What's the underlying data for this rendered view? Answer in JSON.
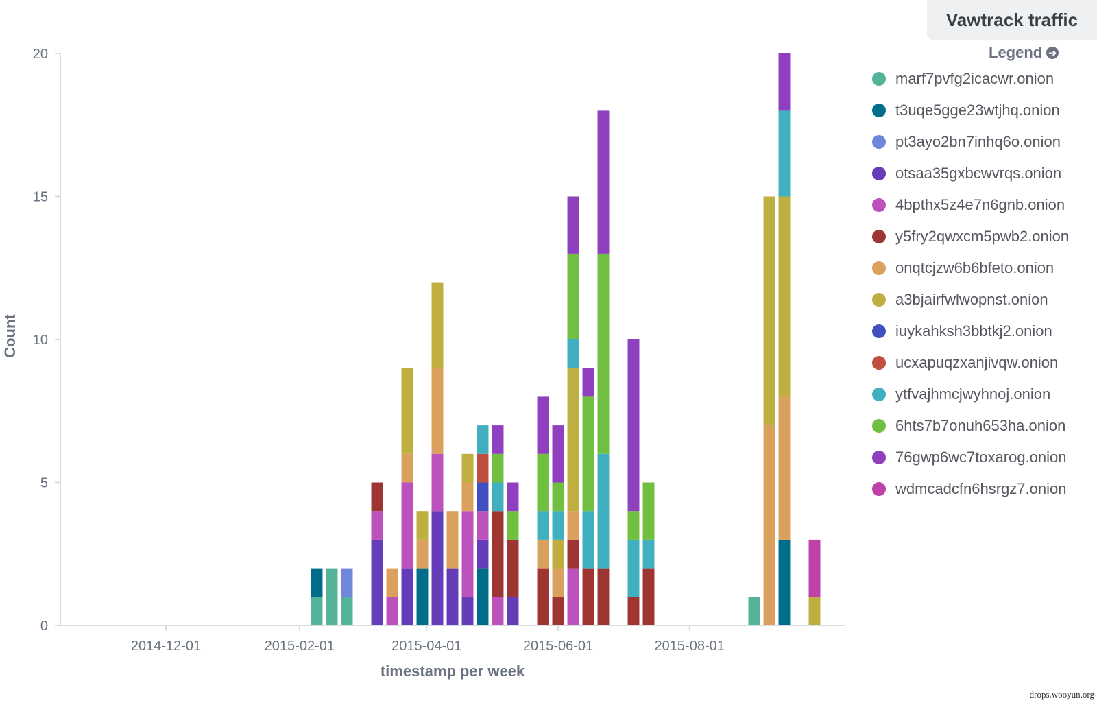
{
  "title": "Vawtrack traffic",
  "legend_title": "Legend",
  "watermark": "drops.wooyun.org",
  "chart_data": {
    "type": "bar",
    "stacked": true,
    "xlabel": "timestamp per week",
    "ylabel": "Count",
    "ylim": [
      0,
      20
    ],
    "yticks": [
      0,
      5,
      10,
      15,
      20
    ],
    "xticks": [
      "2014-12-01",
      "2015-02-01",
      "2015-04-01",
      "2015-06-01",
      "2015-08-01"
    ],
    "xrange": [
      "2014-10-13",
      "2015-10-12"
    ],
    "grid": false,
    "legend_position": "right",
    "series": [
      {
        "name": "marf7pvfg2icacwr.onion",
        "color": "#54b399"
      },
      {
        "name": "t3uqe5gge23wtjhq.onion",
        "color": "#006e8a"
      },
      {
        "name": "pt3ayo2bn7inhq6o.onion",
        "color": "#6f87d8"
      },
      {
        "name": "otsaa35gxbcwvrqs.onion",
        "color": "#663db8"
      },
      {
        "name": "4bpthx5z4e7n6gnb.onion",
        "color": "#bc52bc"
      },
      {
        "name": "y5fry2qwxcm5pwb2.onion",
        "color": "#9e3533"
      },
      {
        "name": "onqtcjzw6b6bfeto.onion",
        "color": "#daa05d"
      },
      {
        "name": "a3bjairfwlwopnst.onion",
        "color": "#bfaf40"
      },
      {
        "name": "iuykahksh3bbtkj2.onion",
        "color": "#4050bf"
      },
      {
        "name": "ucxapuqzxanjivqw.onion",
        "color": "#bf5040"
      },
      {
        "name": "ytfvajhmcjwyhnoj.onion",
        "color": "#40afbf"
      },
      {
        "name": "6hts7b7onuh653ha.onion",
        "color": "#70bf40"
      },
      {
        "name": "76gwp6wc7toxarog.onion",
        "color": "#8e40bf"
      },
      {
        "name": "wdmcadcfn6hsrgz7.onion",
        "color": "#bf40a7"
      }
    ],
    "bars": [
      {
        "week": "2015-02-09",
        "segments": [
          {
            "series": 0,
            "value": 1
          },
          {
            "series": 1,
            "value": 1
          }
        ]
      },
      {
        "week": "2015-02-16",
        "segments": [
          {
            "series": 0,
            "value": 2
          }
        ]
      },
      {
        "week": "2015-02-23",
        "segments": [
          {
            "series": 0,
            "value": 1
          },
          {
            "series": 2,
            "value": 1
          }
        ]
      },
      {
        "week": "2015-03-09",
        "segments": [
          {
            "series": 3,
            "value": 3
          },
          {
            "series": 4,
            "value": 1
          },
          {
            "series": 5,
            "value": 1
          }
        ]
      },
      {
        "week": "2015-03-16",
        "segments": [
          {
            "series": 4,
            "value": 1
          },
          {
            "series": 6,
            "value": 1
          }
        ]
      },
      {
        "week": "2015-03-23",
        "segments": [
          {
            "series": 3,
            "value": 2
          },
          {
            "series": 4,
            "value": 3
          },
          {
            "series": 6,
            "value": 1
          },
          {
            "series": 7,
            "value": 3
          }
        ]
      },
      {
        "week": "2015-03-30",
        "segments": [
          {
            "series": 1,
            "value": 2
          },
          {
            "series": 6,
            "value": 1
          },
          {
            "series": 7,
            "value": 1
          }
        ]
      },
      {
        "week": "2015-04-06",
        "segments": [
          {
            "series": 3,
            "value": 4
          },
          {
            "series": 4,
            "value": 2
          },
          {
            "series": 6,
            "value": 3
          },
          {
            "series": 7,
            "value": 3
          }
        ]
      },
      {
        "week": "2015-04-13",
        "segments": [
          {
            "series": 3,
            "value": 2
          },
          {
            "series": 6,
            "value": 2
          }
        ]
      },
      {
        "week": "2015-04-20",
        "segments": [
          {
            "series": 3,
            "value": 1
          },
          {
            "series": 4,
            "value": 3
          },
          {
            "series": 6,
            "value": 1
          },
          {
            "series": 7,
            "value": 1
          }
        ]
      },
      {
        "week": "2015-04-27",
        "segments": [
          {
            "series": 1,
            "value": 2
          },
          {
            "series": 3,
            "value": 1
          },
          {
            "series": 4,
            "value": 1
          },
          {
            "series": 8,
            "value": 1
          },
          {
            "series": 9,
            "value": 1
          },
          {
            "series": 10,
            "value": 1
          }
        ]
      },
      {
        "week": "2015-05-04",
        "segments": [
          {
            "series": 4,
            "value": 1
          },
          {
            "series": 5,
            "value": 3
          },
          {
            "series": 10,
            "value": 1
          },
          {
            "series": 11,
            "value": 1
          },
          {
            "series": 12,
            "value": 1
          }
        ]
      },
      {
        "week": "2015-05-11",
        "segments": [
          {
            "series": 3,
            "value": 1
          },
          {
            "series": 5,
            "value": 2
          },
          {
            "series": 11,
            "value": 1
          },
          {
            "series": 12,
            "value": 1
          }
        ]
      },
      {
        "week": "2015-05-25",
        "segments": [
          {
            "series": 5,
            "value": 2
          },
          {
            "series": 6,
            "value": 1
          },
          {
            "series": 10,
            "value": 1
          },
          {
            "series": 11,
            "value": 2
          },
          {
            "series": 12,
            "value": 2
          }
        ]
      },
      {
        "week": "2015-06-01",
        "segments": [
          {
            "series": 5,
            "value": 1
          },
          {
            "series": 6,
            "value": 1
          },
          {
            "series": 7,
            "value": 1
          },
          {
            "series": 10,
            "value": 1
          },
          {
            "series": 11,
            "value": 1
          },
          {
            "series": 12,
            "value": 2
          }
        ]
      },
      {
        "week": "2015-06-08",
        "segments": [
          {
            "series": 4,
            "value": 2
          },
          {
            "series": 5,
            "value": 1
          },
          {
            "series": 6,
            "value": 1
          },
          {
            "series": 7,
            "value": 5
          },
          {
            "series": 10,
            "value": 1
          },
          {
            "series": 11,
            "value": 3
          },
          {
            "series": 12,
            "value": 2
          }
        ]
      },
      {
        "week": "2015-06-15",
        "segments": [
          {
            "series": 5,
            "value": 2
          },
          {
            "series": 10,
            "value": 2
          },
          {
            "series": 11,
            "value": 4
          },
          {
            "series": 12,
            "value": 1
          }
        ]
      },
      {
        "week": "2015-06-22",
        "segments": [
          {
            "series": 5,
            "value": 2
          },
          {
            "series": 10,
            "value": 4
          },
          {
            "series": 11,
            "value": 7
          },
          {
            "series": 12,
            "value": 5
          }
        ]
      },
      {
        "week": "2015-07-06",
        "segments": [
          {
            "series": 5,
            "value": 1
          },
          {
            "series": 10,
            "value": 2
          },
          {
            "series": 11,
            "value": 1
          },
          {
            "series": 12,
            "value": 6
          }
        ]
      },
      {
        "week": "2015-07-13",
        "segments": [
          {
            "series": 5,
            "value": 2
          },
          {
            "series": 10,
            "value": 1
          },
          {
            "series": 11,
            "value": 2
          }
        ]
      },
      {
        "week": "2015-08-31",
        "segments": [
          {
            "series": 0,
            "value": 1
          }
        ]
      },
      {
        "week": "2015-09-07",
        "segments": [
          {
            "series": 6,
            "value": 7
          },
          {
            "series": 7,
            "value": 8
          }
        ]
      },
      {
        "week": "2015-09-14",
        "segments": [
          {
            "series": 1,
            "value": 3
          },
          {
            "series": 6,
            "value": 5
          },
          {
            "series": 7,
            "value": 7
          },
          {
            "series": 10,
            "value": 3
          },
          {
            "series": 12,
            "value": 2
          }
        ]
      },
      {
        "week": "2015-09-28",
        "segments": [
          {
            "series": 7,
            "value": 1
          },
          {
            "series": 13,
            "value": 2
          }
        ]
      }
    ]
  }
}
